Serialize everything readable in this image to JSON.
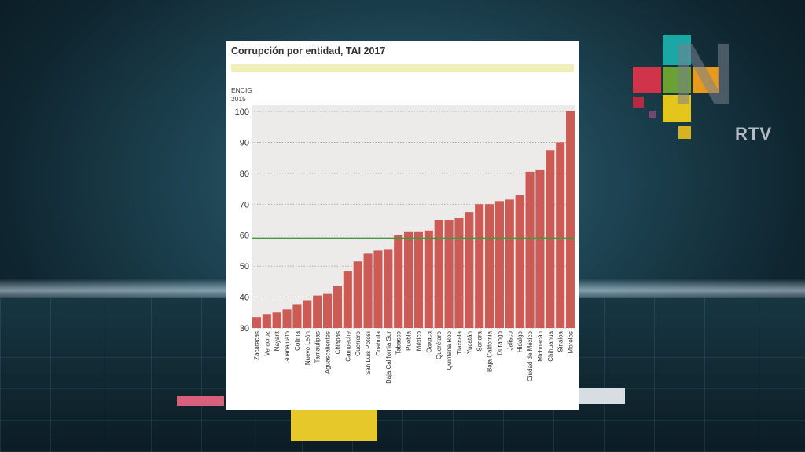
{
  "chart_data": {
    "type": "bar",
    "title": "Corrupción por entidad, TAI 2017",
    "ylabel": "ENCIG 2015",
    "ylabel_lines": [
      "ENCIG",
      "2015"
    ],
    "ylim": [
      30,
      100
    ],
    "yticks": [
      30,
      40,
      50,
      60,
      70,
      80,
      90,
      100
    ],
    "grid": true,
    "reference_line": 59,
    "bar_color": "#cc5b56",
    "reference_color": "#3f9a3f",
    "categories": [
      "Zacatecas",
      "Veracruz",
      "Nayarit",
      "Guanajuato",
      "Colima",
      "Nuevo León",
      "Tamaulipas",
      "Aguascalientes",
      "Chiapas",
      "Campeche",
      "Guerrero",
      "San Luis Potosí",
      "Coahuila",
      "Baja California Sur",
      "Tabasco",
      "Puebla",
      "México",
      "Oaxaca",
      "Querétaro",
      "Quintana Roo",
      "Tlaxcala",
      "Yucatán",
      "Sonora",
      "Baja California",
      "Durango",
      "Jalisco",
      "Hidalgo",
      "Ciudad de México",
      "Michoacán",
      "Chihuahua",
      "Sinaloa",
      "Morelos"
    ],
    "values": [
      33.5,
      34.5,
      35,
      36,
      37.5,
      39,
      40.5,
      41,
      43.5,
      48.5,
      51.5,
      54,
      55,
      55.5,
      60,
      61,
      61,
      61.5,
      65,
      65,
      65.5,
      67.5,
      70,
      70,
      71,
      71.5,
      73,
      80.5,
      81,
      87.5,
      90,
      100
    ]
  },
  "logo": {
    "text": "RTV"
  }
}
